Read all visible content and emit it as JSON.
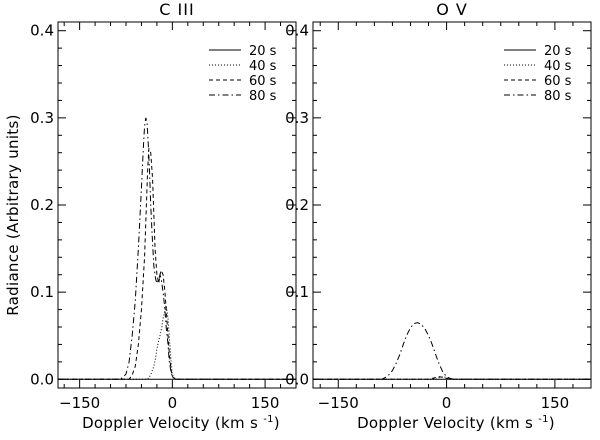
{
  "chart_data": [
    {
      "type": "line",
      "title": "C  III",
      "xlabel": "Doppler Velocity (km s",
      "xlabel_superscript": "-1",
      "xlabel_close": ")",
      "ylabel": "Radiance (Arbitrary units)",
      "xlim": [
        -185,
        200
      ],
      "ylim": [
        -0.01,
        0.41
      ],
      "xticks": [
        -150,
        0,
        150
      ],
      "xtick_labels": [
        "−150",
        "0",
        "150"
      ],
      "yticks": [
        0.0,
        0.1,
        0.2,
        0.3,
        0.4
      ],
      "ytick_labels": [
        "0.0",
        "0.1",
        "0.2",
        "0.3",
        "0.4"
      ],
      "grid": false,
      "legend_position": "top-right",
      "series": [
        {
          "name": "20 s",
          "dash": "solid",
          "x": [
            -185,
            -70,
            -60,
            -50,
            -45,
            -40,
            -38,
            -35,
            -30,
            -25,
            -20,
            -15,
            -10,
            -5,
            0,
            10,
            200
          ],
          "y": [
            0,
            0,
            0,
            0,
            0,
            0,
            0,
            0,
            0,
            0,
            0,
            0,
            0,
            0,
            0,
            0,
            0
          ]
        },
        {
          "name": "40 s",
          "dash": "dotted",
          "x": [
            -185,
            -40,
            -35,
            -30,
            -27,
            -25,
            -22,
            -20,
            -17,
            -15,
            -12,
            -10,
            -7,
            -5,
            -2,
            0,
            5,
            200
          ],
          "y": [
            0,
            0,
            0.005,
            0.015,
            0.025,
            0.035,
            0.045,
            0.05,
            0.06,
            0.07,
            0.08,
            0.085,
            0.07,
            0.05,
            0.02,
            0.005,
            0,
            0
          ]
        },
        {
          "name": "60 s",
          "dash": "dashed",
          "x": [
            -185,
            -70,
            -65,
            -60,
            -55,
            -50,
            -45,
            -42,
            -40,
            -38,
            -35,
            -32,
            -30,
            -28,
            -25,
            -22,
            -20,
            -18,
            -15,
            -12,
            -10,
            -7,
            -5,
            -2,
            0,
            5,
            200
          ],
          "y": [
            0,
            0,
            0.005,
            0.015,
            0.04,
            0.08,
            0.14,
            0.2,
            0.24,
            0.265,
            0.26,
            0.23,
            0.19,
            0.15,
            0.12,
            0.11,
            0.12,
            0.125,
            0.12,
            0.1,
            0.08,
            0.05,
            0.03,
            0.01,
            0.003,
            0,
            0
          ]
        },
        {
          "name": "80 s",
          "dash": "dashdot",
          "x": [
            -185,
            -85,
            -80,
            -75,
            -70,
            -65,
            -60,
            -55,
            -50,
            -47,
            -45,
            -43,
            -41,
            -39,
            -37,
            -35,
            -33,
            -30,
            -27,
            -25,
            -22,
            -20,
            -18,
            -15,
            -12,
            -10,
            -7,
            -5,
            -2,
            0,
            5,
            200
          ],
          "y": [
            0,
            0,
            0.002,
            0.006,
            0.02,
            0.05,
            0.09,
            0.15,
            0.22,
            0.265,
            0.29,
            0.3,
            0.295,
            0.27,
            0.24,
            0.2,
            0.17,
            0.13,
            0.115,
            0.11,
            0.115,
            0.12,
            0.115,
            0.1,
            0.08,
            0.06,
            0.04,
            0.02,
            0.008,
            0.003,
            0,
            0
          ]
        }
      ]
    },
    {
      "type": "line",
      "title": "O  V",
      "xlabel": "Doppler Velocity (km s",
      "xlabel_superscript": "-1",
      "xlabel_close": ")",
      "ylabel": "",
      "xlim": [
        -185,
        200
      ],
      "ylim": [
        -0.01,
        0.41
      ],
      "xticks": [
        -150,
        0,
        150
      ],
      "xtick_labels": [
        "−150",
        "0",
        "150"
      ],
      "yticks": [
        0.0,
        0.1,
        0.2,
        0.3,
        0.4
      ],
      "ytick_labels": [
        "0.0",
        "0.1",
        "0.2",
        "0.3",
        "0.4"
      ],
      "grid": false,
      "legend_position": "top-right",
      "series": [
        {
          "name": "20 s",
          "dash": "solid",
          "x": [
            -185,
            200
          ],
          "y": [
            0,
            0
          ]
        },
        {
          "name": "40 s",
          "dash": "dotted",
          "x": [
            -185,
            -15,
            -10,
            -5,
            0,
            5,
            200
          ],
          "y": [
            0,
            0,
            0.002,
            0.003,
            0.002,
            0,
            0
          ]
        },
        {
          "name": "60 s",
          "dash": "dashed",
          "x": [
            -185,
            -25,
            -15,
            -10,
            -5,
            0,
            5,
            200
          ],
          "y": [
            0,
            0,
            0.002,
            0.003,
            0.002,
            0.001,
            0,
            0
          ]
        },
        {
          "name": "80 s",
          "dash": "dashdot",
          "x": [
            -185,
            -90,
            -85,
            -80,
            -75,
            -70,
            -65,
            -60,
            -55,
            -50,
            -45,
            -40,
            -35,
            -30,
            -25,
            -20,
            -15,
            -10,
            -5,
            0,
            5,
            10,
            200
          ],
          "y": [
            0,
            0,
            0.002,
            0.005,
            0.01,
            0.018,
            0.028,
            0.04,
            0.051,
            0.059,
            0.064,
            0.065,
            0.063,
            0.058,
            0.05,
            0.04,
            0.028,
            0.017,
            0.008,
            0.003,
            0.001,
            0,
            0
          ]
        }
      ]
    }
  ]
}
